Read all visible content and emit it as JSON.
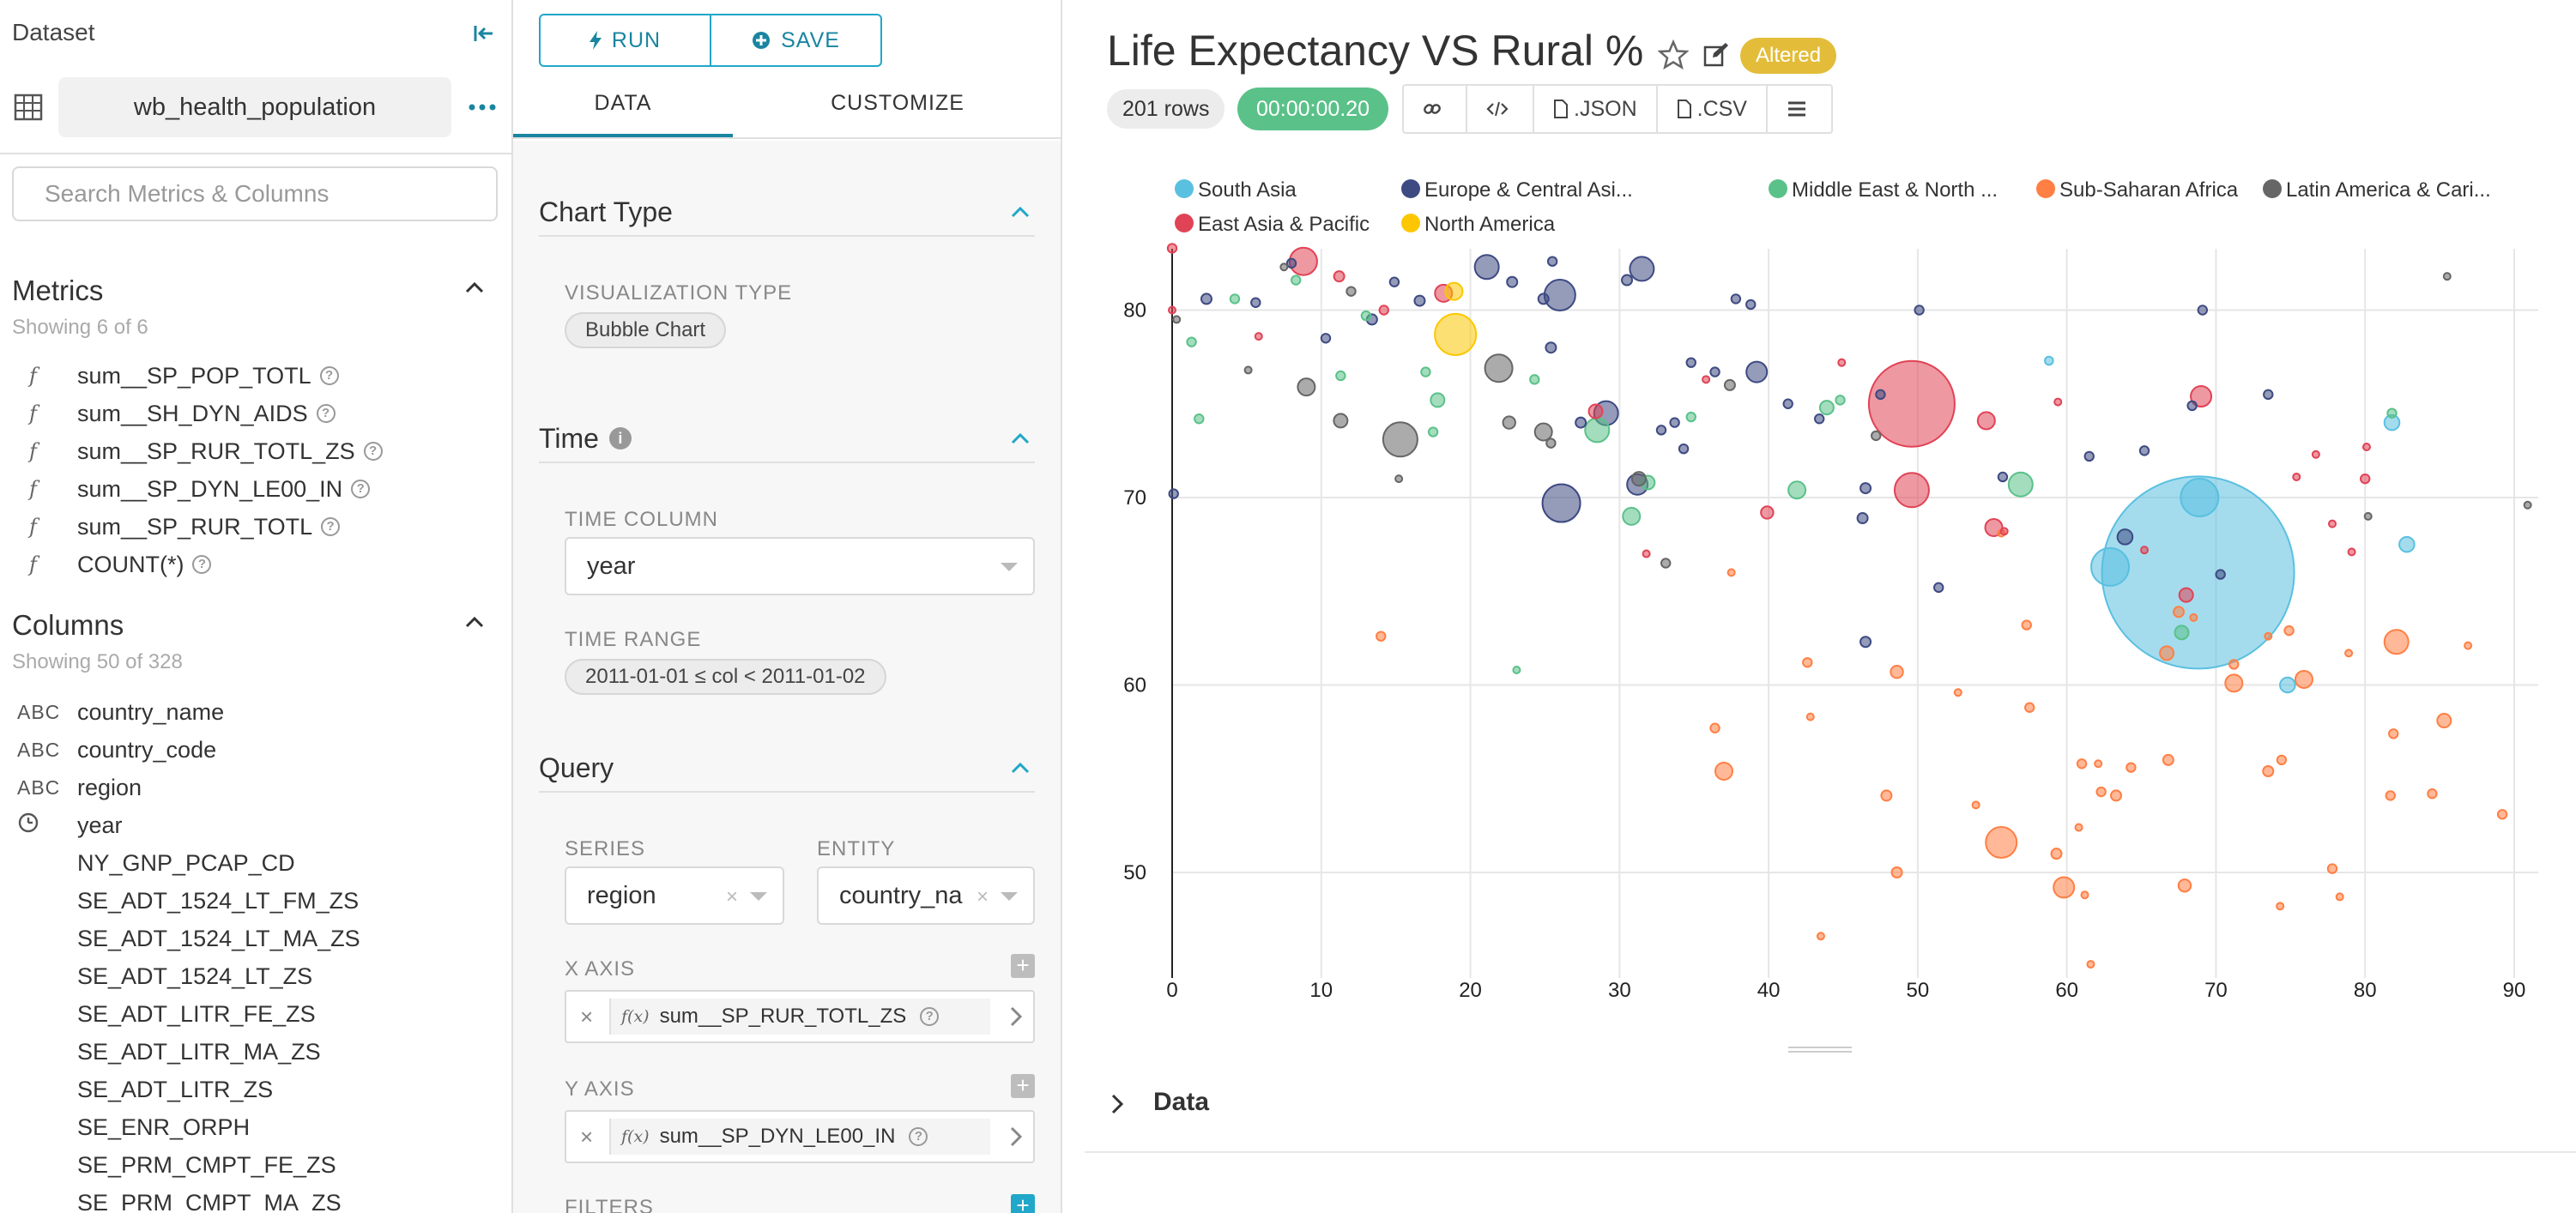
{
  "dataset_panel": {
    "title": "Dataset",
    "dataset_name": "wb_health_population",
    "search_placeholder": "Search Metrics & Columns",
    "metrics_heading": "Metrics",
    "metrics_count": "Showing 6 of 6",
    "metrics": [
      {
        "icon": "f",
        "name": "sum__SP_POP_TOTL"
      },
      {
        "icon": "f",
        "name": "sum__SH_DYN_AIDS"
      },
      {
        "icon": "f",
        "name": "sum__SP_RUR_TOTL_ZS"
      },
      {
        "icon": "f",
        "name": "sum__SP_DYN_LE00_IN"
      },
      {
        "icon": "f",
        "name": "sum__SP_RUR_TOTL"
      },
      {
        "icon": "f",
        "name": "COUNT(*)"
      }
    ],
    "columns_heading": "Columns",
    "columns_count": "Showing 50 of 328",
    "columns": [
      {
        "type": "ABC",
        "name": "country_name"
      },
      {
        "type": "ABC",
        "name": "country_code"
      },
      {
        "type": "ABC",
        "name": "region"
      },
      {
        "type": "clock",
        "name": "year"
      },
      {
        "type": "",
        "name": "NY_GNP_PCAP_CD"
      },
      {
        "type": "",
        "name": "SE_ADT_1524_LT_FM_ZS"
      },
      {
        "type": "",
        "name": "SE_ADT_1524_LT_MA_ZS"
      },
      {
        "type": "",
        "name": "SE_ADT_1524_LT_ZS"
      },
      {
        "type": "",
        "name": "SE_ADT_LITR_FE_ZS"
      },
      {
        "type": "",
        "name": "SE_ADT_LITR_MA_ZS"
      },
      {
        "type": "",
        "name": "SE_ADT_LITR_ZS"
      },
      {
        "type": "",
        "name": "SE_ENR_ORPH"
      },
      {
        "type": "",
        "name": "SE_PRM_CMPT_FE_ZS"
      },
      {
        "type": "",
        "name": "SE_PRM_CMPT_MA_ZS"
      }
    ]
  },
  "control_panel": {
    "run_label": "RUN",
    "save_label": "SAVE",
    "tab_data": "DATA",
    "tab_customize": "CUSTOMIZE",
    "chart_type": {
      "heading": "Chart Type",
      "viz_label": "VISUALIZATION TYPE",
      "viz_value": "Bubble Chart"
    },
    "time": {
      "heading": "Time",
      "column_label": "TIME COLUMN",
      "column_value": "year",
      "range_label": "TIME RANGE",
      "range_value": "2011-01-01 ≤ col < 2011-01-02"
    },
    "query": {
      "heading": "Query",
      "series_label": "SERIES",
      "series_value": "region",
      "entity_label": "ENTITY",
      "entity_value": "country_na",
      "x_axis_label": "X AXIS",
      "x_axis_value": "sum__SP_RUR_TOTL_ZS",
      "y_axis_label": "Y AXIS",
      "y_axis_value": "sum__SP_DYN_LE00_IN",
      "filters_label": "FILTERS",
      "fx": "f(x)"
    }
  },
  "chart_header": {
    "title": "Life Expectancy VS Rural %",
    "altered": "Altered",
    "rows": "201 rows",
    "elapsed": "00:00:00.20",
    "json_label": ".JSON",
    "csv_label": ".CSV"
  },
  "data_section_label": "Data",
  "chart_data": {
    "type": "scatter",
    "xlabel": "",
    "ylabel": "",
    "xlim": [
      0,
      91
    ],
    "ylim": [
      45,
      83
    ],
    "xticks": [
      0,
      10,
      20,
      30,
      40,
      50,
      60,
      70,
      80,
      90
    ],
    "yticks": [
      50,
      60,
      70,
      80
    ],
    "grid": true,
    "legend_position": "top",
    "series": [
      {
        "name": "South Asia",
        "color": "#5AC0E0",
        "points": [
          {
            "x": 68.8,
            "y": 66,
            "r": 28
          },
          {
            "x": 68.9,
            "y": 70,
            "r": 5.5
          },
          {
            "x": 62.9,
            "y": 66.3,
            "r": 5.5
          },
          {
            "x": 81.8,
            "y": 74,
            "r": 2.2
          },
          {
            "x": 82.8,
            "y": 67.5,
            "r": 2.2
          },
          {
            "x": 74.8,
            "y": 60,
            "r": 2.2
          },
          {
            "x": 58.8,
            "y": 77.3,
            "r": 1.2
          }
        ]
      },
      {
        "name": "Europe & Central Asi...",
        "color": "#3E4A82",
        "points": [
          {
            "x": 2.3,
            "y": 80.6,
            "r": 1.5
          },
          {
            "x": 5.6,
            "y": 80.4,
            "r": 1.3
          },
          {
            "x": 8.0,
            "y": 82.5,
            "r": 1.3
          },
          {
            "x": 10.3,
            "y": 78.5,
            "r": 1.3
          },
          {
            "x": 13.4,
            "y": 79.5,
            "r": 1.5
          },
          {
            "x": 14.9,
            "y": 81.5,
            "r": 1.3
          },
          {
            "x": 16.6,
            "y": 80.5,
            "r": 1.5
          },
          {
            "x": 21.1,
            "y": 82.3,
            "r": 3.5
          },
          {
            "x": 22.8,
            "y": 81.5,
            "r": 1.5
          },
          {
            "x": 24.9,
            "y": 80.6,
            "r": 1.5
          },
          {
            "x": 25.5,
            "y": 82.6,
            "r": 1.3
          },
          {
            "x": 25.4,
            "y": 78.0,
            "r": 1.5
          },
          {
            "x": 26.0,
            "y": 80.8,
            "r": 4.5
          },
          {
            "x": 26.1,
            "y": 69.7,
            "r": 5.5
          },
          {
            "x": 27.4,
            "y": 74.0,
            "r": 1.5
          },
          {
            "x": 29.1,
            "y": 74.5,
            "r": 3.5
          },
          {
            "x": 30.5,
            "y": 81.6,
            "r": 1.5
          },
          {
            "x": 31.5,
            "y": 82.2,
            "r": 3.5
          },
          {
            "x": 32.8,
            "y": 73.6,
            "r": 1.3
          },
          {
            "x": 33.7,
            "y": 74.0,
            "r": 1.3
          },
          {
            "x": 34.3,
            "y": 72.6,
            "r": 1.3
          },
          {
            "x": 34.8,
            "y": 77.2,
            "r": 1.3
          },
          {
            "x": 36.4,
            "y": 76.7,
            "r": 1.3
          },
          {
            "x": 37.8,
            "y": 80.6,
            "r": 1.3
          },
          {
            "x": 38.8,
            "y": 80.3,
            "r": 1.3
          },
          {
            "x": 39.2,
            "y": 76.7,
            "r": 3.0
          },
          {
            "x": 41.3,
            "y": 75.0,
            "r": 1.3
          },
          {
            "x": 43.4,
            "y": 74.2,
            "r": 1.3
          },
          {
            "x": 46.5,
            "y": 70.5,
            "r": 1.5
          },
          {
            "x": 46.3,
            "y": 68.9,
            "r": 1.5
          },
          {
            "x": 47.5,
            "y": 75.5,
            "r": 1.3
          },
          {
            "x": 50.1,
            "y": 80.0,
            "r": 1.3
          },
          {
            "x": 51.4,
            "y": 65.2,
            "r": 1.3
          },
          {
            "x": 55.7,
            "y": 71.1,
            "r": 1.3
          },
          {
            "x": 61.5,
            "y": 72.2,
            "r": 1.3
          },
          {
            "x": 65.2,
            "y": 72.5,
            "r": 1.3
          },
          {
            "x": 68.4,
            "y": 74.9,
            "r": 1.3
          },
          {
            "x": 69.1,
            "y": 80.0,
            "r": 1.3
          },
          {
            "x": 73.5,
            "y": 75.5,
            "r": 1.3
          },
          {
            "x": 63.9,
            "y": 67.9,
            "r": 2.2
          },
          {
            "x": 70.3,
            "y": 65.9,
            "r": 1.3
          },
          {
            "x": 46.5,
            "y": 62.3,
            "r": 1.5
          },
          {
            "x": 0.1,
            "y": 70.2,
            "r": 1.3
          },
          {
            "x": 31.2,
            "y": 70.7,
            "r": 3.0
          }
        ]
      },
      {
        "name": "Middle East & North ...",
        "color": "#5AC189",
        "points": [
          {
            "x": 1.3,
            "y": 78.3,
            "r": 1.3
          },
          {
            "x": 1.8,
            "y": 74.2,
            "r": 1.3
          },
          {
            "x": 4.2,
            "y": 80.6,
            "r": 1.3
          },
          {
            "x": 8.3,
            "y": 81.6,
            "r": 1.3
          },
          {
            "x": 11.3,
            "y": 76.5,
            "r": 1.3
          },
          {
            "x": 13.0,
            "y": 79.7,
            "r": 1.3
          },
          {
            "x": 17.0,
            "y": 76.7,
            "r": 1.3
          },
          {
            "x": 17.8,
            "y": 75.2,
            "r": 2.0
          },
          {
            "x": 17.5,
            "y": 73.5,
            "r": 1.3
          },
          {
            "x": 24.3,
            "y": 76.3,
            "r": 1.3
          },
          {
            "x": 28.5,
            "y": 73.6,
            "r": 3.5
          },
          {
            "x": 30.8,
            "y": 69.0,
            "r": 2.5
          },
          {
            "x": 31.9,
            "y": 70.8,
            "r": 2.0
          },
          {
            "x": 34.8,
            "y": 74.3,
            "r": 1.3
          },
          {
            "x": 41.9,
            "y": 70.4,
            "r": 2.5
          },
          {
            "x": 43.9,
            "y": 74.8,
            "r": 2.0
          },
          {
            "x": 44.8,
            "y": 75.2,
            "r": 1.3
          },
          {
            "x": 56.9,
            "y": 70.7,
            "r": 3.5
          },
          {
            "x": 67.7,
            "y": 62.8,
            "r": 2.0
          },
          {
            "x": 81.8,
            "y": 74.5,
            "r": 1.3
          },
          {
            "x": 23.1,
            "y": 60.8,
            "r": 1.0
          }
        ]
      },
      {
        "name": "Sub-Saharan Africa",
        "color": "#FF7F44",
        "points": [
          {
            "x": 14.0,
            "y": 62.6,
            "r": 1.3
          },
          {
            "x": 36.4,
            "y": 57.7,
            "r": 1.3
          },
          {
            "x": 37.0,
            "y": 55.4,
            "r": 2.5
          },
          {
            "x": 37.5,
            "y": 66.0,
            "r": 1.0
          },
          {
            "x": 42.6,
            "y": 61.2,
            "r": 1.3
          },
          {
            "x": 42.8,
            "y": 58.3,
            "r": 1.0
          },
          {
            "x": 43.5,
            "y": 46.6,
            "r": 1.0
          },
          {
            "x": 47.9,
            "y": 54.1,
            "r": 1.5
          },
          {
            "x": 48.6,
            "y": 60.7,
            "r": 1.8
          },
          {
            "x": 48.6,
            "y": 50.0,
            "r": 1.5
          },
          {
            "x": 52.7,
            "y": 59.6,
            "r": 1.0
          },
          {
            "x": 53.9,
            "y": 53.6,
            "r": 1.0
          },
          {
            "x": 55.6,
            "y": 51.6,
            "r": 4.5
          },
          {
            "x": 55.6,
            "y": 68.1,
            "r": 1.0
          },
          {
            "x": 57.3,
            "y": 63.2,
            "r": 1.3
          },
          {
            "x": 57.5,
            "y": 58.8,
            "r": 1.3
          },
          {
            "x": 59.3,
            "y": 51.0,
            "r": 1.5
          },
          {
            "x": 59.8,
            "y": 49.2,
            "r": 3.0
          },
          {
            "x": 60.8,
            "y": 52.4,
            "r": 1.0
          },
          {
            "x": 61.0,
            "y": 55.8,
            "r": 1.3
          },
          {
            "x": 61.2,
            "y": 48.8,
            "r": 1.0
          },
          {
            "x": 61.6,
            "y": 45.1,
            "r": 1.0
          },
          {
            "x": 62.1,
            "y": 55.8,
            "r": 1.0
          },
          {
            "x": 62.3,
            "y": 54.3,
            "r": 1.3
          },
          {
            "x": 63.3,
            "y": 54.1,
            "r": 1.5
          },
          {
            "x": 64.3,
            "y": 55.6,
            "r": 1.3
          },
          {
            "x": 66.8,
            "y": 56.0,
            "r": 1.5
          },
          {
            "x": 66.7,
            "y": 61.7,
            "r": 2.0
          },
          {
            "x": 67.5,
            "y": 63.9,
            "r": 1.5
          },
          {
            "x": 67.9,
            "y": 49.3,
            "r": 1.8
          },
          {
            "x": 71.2,
            "y": 60.1,
            "r": 2.5
          },
          {
            "x": 71.2,
            "y": 61.1,
            "r": 1.3
          },
          {
            "x": 74.4,
            "y": 56.0,
            "r": 1.3
          },
          {
            "x": 73.5,
            "y": 55.4,
            "r": 1.5
          },
          {
            "x": 74.3,
            "y": 48.2,
            "r": 1.0
          },
          {
            "x": 75.9,
            "y": 60.3,
            "r": 2.5
          },
          {
            "x": 77.8,
            "y": 50.2,
            "r": 1.3
          },
          {
            "x": 78.3,
            "y": 48.7,
            "r": 1.0
          },
          {
            "x": 78.9,
            "y": 61.7,
            "r": 1.0
          },
          {
            "x": 81.7,
            "y": 54.1,
            "r": 1.3
          },
          {
            "x": 82.1,
            "y": 62.3,
            "r": 3.5
          },
          {
            "x": 81.9,
            "y": 57.4,
            "r": 1.3
          },
          {
            "x": 84.5,
            "y": 54.2,
            "r": 1.3
          },
          {
            "x": 85.3,
            "y": 58.1,
            "r": 2.0
          },
          {
            "x": 86.9,
            "y": 62.1,
            "r": 1.0
          },
          {
            "x": 89.2,
            "y": 53.1,
            "r": 1.3
          },
          {
            "x": 73.5,
            "y": 62.6,
            "r": 1.0
          },
          {
            "x": 74.9,
            "y": 62.9,
            "r": 1.3
          },
          {
            "x": 68.5,
            "y": 63.6,
            "r": 1.0
          }
        ]
      },
      {
        "name": "Latin America & Cari...",
        "color": "#666666",
        "points": [
          {
            "x": 0.3,
            "y": 79.5,
            "r": 1.0
          },
          {
            "x": 5.1,
            "y": 76.8,
            "r": 1.0
          },
          {
            "x": 9.0,
            "y": 75.9,
            "r": 2.5
          },
          {
            "x": 12.0,
            "y": 81.0,
            "r": 1.3
          },
          {
            "x": 11.3,
            "y": 74.1,
            "r": 2.0
          },
          {
            "x": 15.3,
            "y": 73.1,
            "r": 5.0
          },
          {
            "x": 15.2,
            "y": 71.0,
            "r": 1.0
          },
          {
            "x": 21.9,
            "y": 76.9,
            "r": 4.0
          },
          {
            "x": 22.6,
            "y": 74.0,
            "r": 1.8
          },
          {
            "x": 24.9,
            "y": 73.5,
            "r": 2.5
          },
          {
            "x": 25.4,
            "y": 72.9,
            "r": 1.3
          },
          {
            "x": 31.3,
            "y": 71.0,
            "r": 2.0
          },
          {
            "x": 33.1,
            "y": 66.5,
            "r": 1.3
          },
          {
            "x": 37.4,
            "y": 76.0,
            "r": 1.5
          },
          {
            "x": 47.2,
            "y": 73.3,
            "r": 1.3
          },
          {
            "x": 80.2,
            "y": 69.0,
            "r": 1.0
          },
          {
            "x": 85.5,
            "y": 81.8,
            "r": 1.0
          },
          {
            "x": 7.5,
            "y": 82.3,
            "r": 1.0
          },
          {
            "x": 90.9,
            "y": 69.6,
            "r": 1.0
          }
        ]
      },
      {
        "name": "East Asia & Pacific",
        "color": "#E04355",
        "points": [
          {
            "x": 0.0,
            "y": 83.3,
            "r": 1.3
          },
          {
            "x": 0.0,
            "y": 80.0,
            "r": 1.0
          },
          {
            "x": 5.8,
            "y": 78.6,
            "r": 1.0
          },
          {
            "x": 8.8,
            "y": 82.6,
            "r": 4.0
          },
          {
            "x": 11.2,
            "y": 81.8,
            "r": 1.5
          },
          {
            "x": 14.2,
            "y": 80.0,
            "r": 1.3
          },
          {
            "x": 18.2,
            "y": 80.9,
            "r": 2.5
          },
          {
            "x": 28.4,
            "y": 74.6,
            "r": 2.0
          },
          {
            "x": 31.8,
            "y": 67.0,
            "r": 1.0
          },
          {
            "x": 35.8,
            "y": 76.3,
            "r": 1.0
          },
          {
            "x": 39.9,
            "y": 69.2,
            "r": 1.8
          },
          {
            "x": 44.9,
            "y": 77.2,
            "r": 1.0
          },
          {
            "x": 49.6,
            "y": 75.0,
            "r": 12.5
          },
          {
            "x": 49.6,
            "y": 70.4,
            "r": 5.0
          },
          {
            "x": 54.6,
            "y": 74.1,
            "r": 2.5
          },
          {
            "x": 55.1,
            "y": 68.4,
            "r": 2.5
          },
          {
            "x": 55.8,
            "y": 68.2,
            "r": 1.0
          },
          {
            "x": 59.4,
            "y": 75.1,
            "r": 1.0
          },
          {
            "x": 69.0,
            "y": 75.4,
            "r": 3.0
          },
          {
            "x": 68.0,
            "y": 64.8,
            "r": 2.0
          },
          {
            "x": 76.7,
            "y": 72.3,
            "r": 1.0
          },
          {
            "x": 75.4,
            "y": 71.1,
            "r": 1.0
          },
          {
            "x": 77.8,
            "y": 68.6,
            "r": 1.0
          },
          {
            "x": 80.0,
            "y": 71.0,
            "r": 1.3
          },
          {
            "x": 80.1,
            "y": 72.7,
            "r": 1.0
          },
          {
            "x": 79.1,
            "y": 67.1,
            "r": 1.0
          },
          {
            "x": 65.2,
            "y": 67.2,
            "r": 1.0
          }
        ]
      },
      {
        "name": "North America",
        "color": "#FCC700",
        "points": [
          {
            "x": 19.0,
            "y": 78.7,
            "r": 6.0
          },
          {
            "x": 18.9,
            "y": 81.0,
            "r": 2.5
          }
        ]
      }
    ]
  }
}
